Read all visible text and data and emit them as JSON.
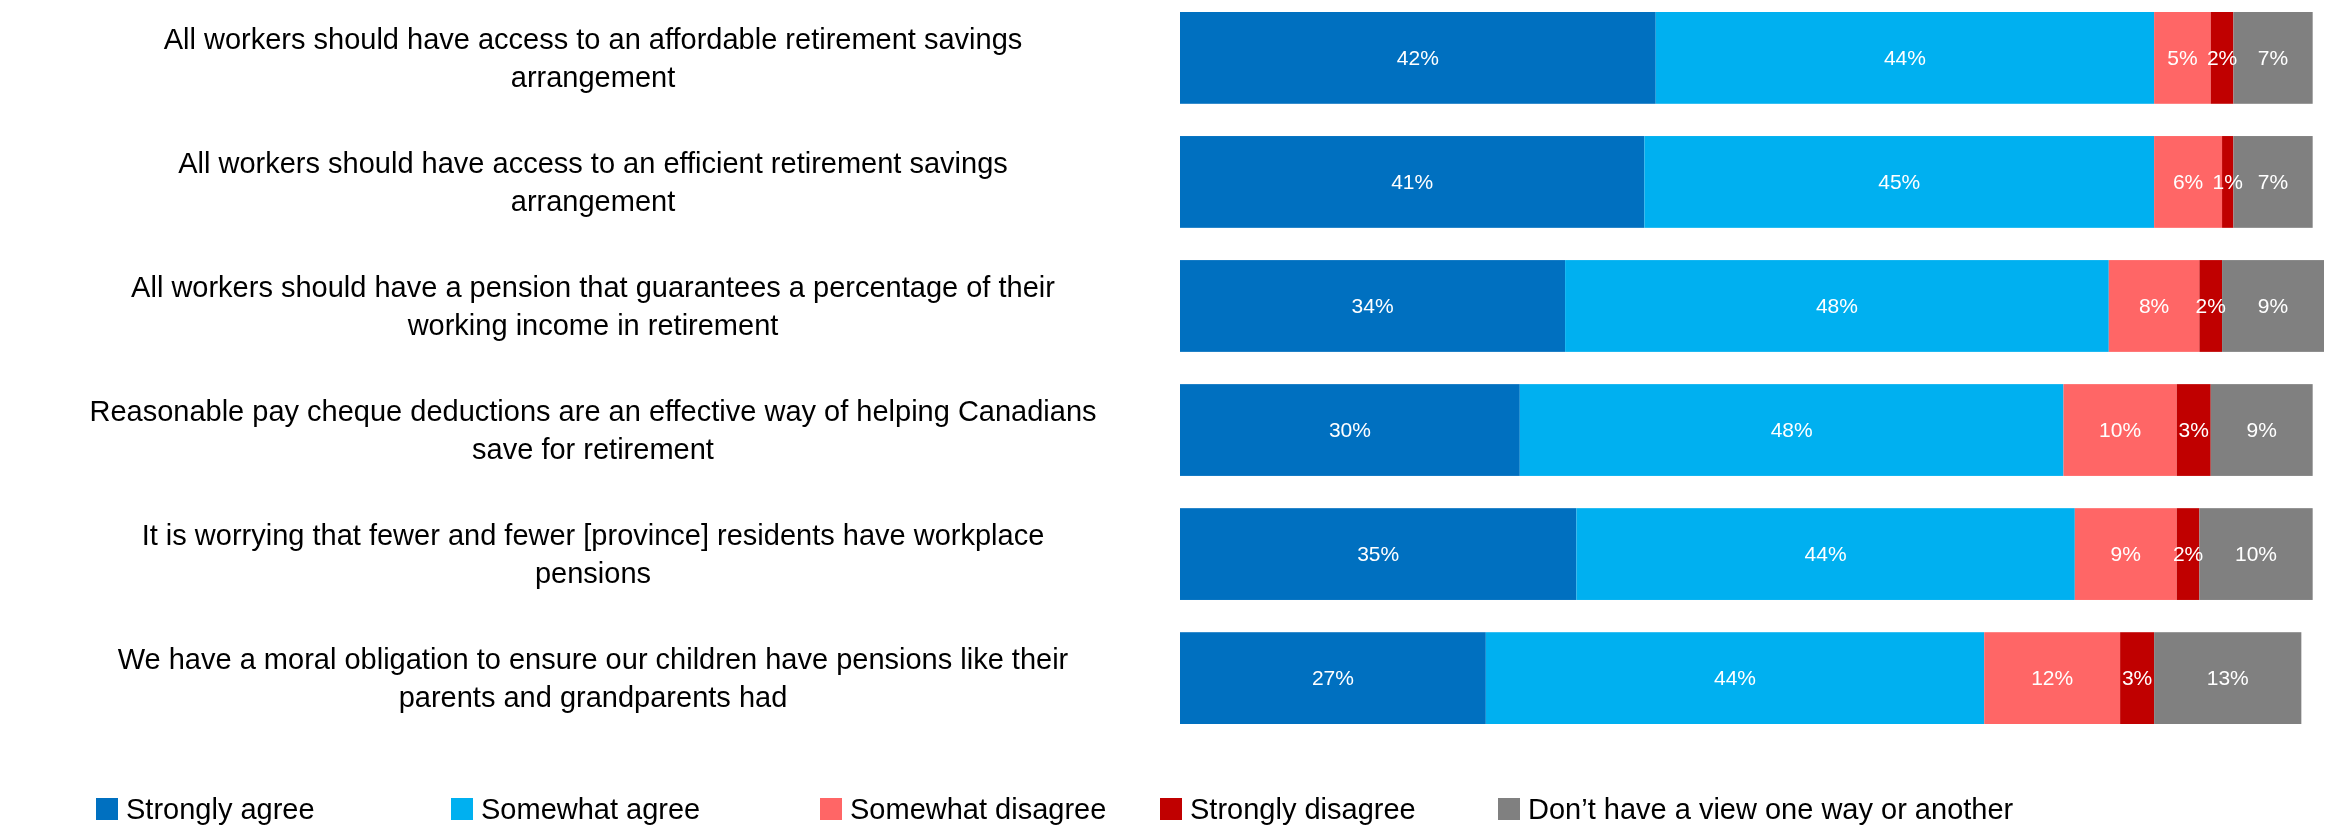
{
  "chart_data": {
    "type": "bar",
    "orientation": "horizontal",
    "stacked": true,
    "legend": "bottom",
    "tick_labels": "y",
    "categories": [
      "All workers should have access to an affordable retirement savings arrangement",
      "All workers should have access to an efficient retirement savings arrangement",
      "All workers should have a pension that guarantees a percentage of their working income in retirement",
      "Reasonable pay cheque deductions are an effective way of helping Canadians save for retirement",
      "It is worrying that fewer and fewer [province] residents have workplace pensions",
      "We have a moral obligation to ensure our children have pensions like their parents and grandparents had"
    ],
    "series": [
      {
        "name": "Strongly agree",
        "color": "#0070c0",
        "values": [
          42,
          41,
          34,
          30,
          35,
          27
        ],
        "value_labels": [
          "42%",
          "41%",
          "34%",
          "30%",
          "35%",
          "27%"
        ]
      },
      {
        "name": "Somewhat agree",
        "color": "#00b0f0",
        "values": [
          44,
          45,
          48,
          48,
          44,
          44
        ],
        "value_labels": [
          "44%",
          "45%",
          "48%",
          "48%",
          "44%",
          "44%"
        ]
      },
      {
        "name": "Somewhat disagree",
        "color": "#ff6666",
        "values": [
          5,
          6,
          8,
          10,
          9,
          12
        ],
        "value_labels": [
          "5%",
          "6%",
          "8%",
          "10%",
          "9%",
          "12%"
        ]
      },
      {
        "name": "Strongly disagree",
        "color": "#c00000",
        "values": [
          2,
          1,
          2,
          3,
          2,
          3
        ],
        "value_labels": [
          "2%",
          "1%",
          "2%",
          "3%",
          "2%",
          "3%"
        ]
      },
      {
        "name": "Don’t have a view one way or another",
        "color": "#808080",
        "values": [
          7,
          7,
          9,
          9,
          10,
          13
        ],
        "value_labels": [
          "7%",
          "7%",
          "9%",
          "9%",
          "10%",
          "13%"
        ]
      }
    ]
  }
}
